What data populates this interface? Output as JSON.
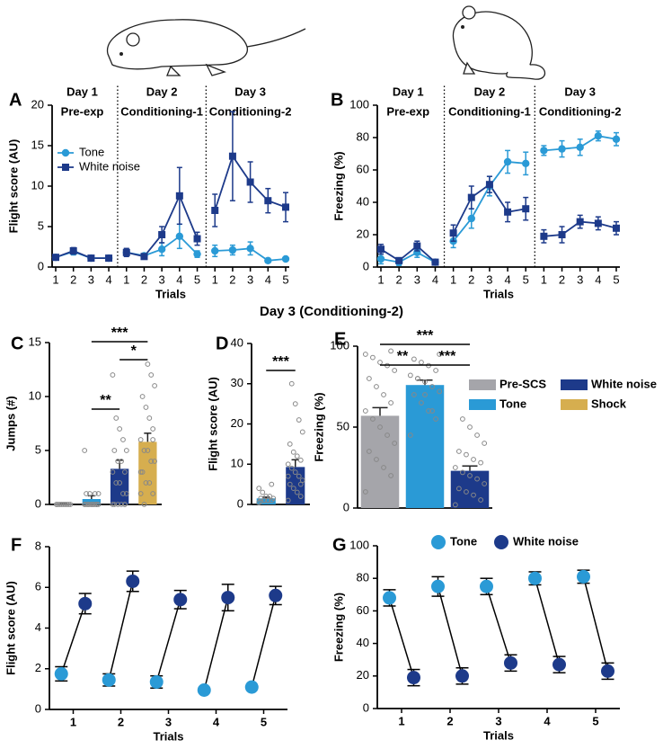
{
  "heading": "Day 3 (Conditioning-2)",
  "chart_data": [
    {
      "type": "line",
      "label": "A",
      "ylabel": "Flight score (AU)",
      "xlabel": "Trials",
      "sections": [
        {
          "title": "Day 1",
          "subtitle": "Pre-exp"
        },
        {
          "title": "Day 2",
          "subtitle": "Conditioning-1"
        },
        {
          "title": "Day 3",
          "subtitle": "Conditioning-2"
        }
      ],
      "categories": [
        "1",
        "2",
        "3",
        "4",
        "1",
        "2",
        "3",
        "4",
        "5",
        "1",
        "2",
        "3",
        "4",
        "5"
      ],
      "ylim": [
        0,
        20
      ],
      "yticks": [
        0,
        5,
        10,
        15,
        20
      ],
      "legend": "upper left",
      "series": [
        {
          "name": "Tone",
          "color": "#2a9ad6",
          "marker": "circle",
          "values": [
            1.2,
            1.9,
            1.1,
            1.1,
            1.8,
            1.4,
            2.2,
            3.8,
            1.6,
            2.0,
            2.1,
            2.3,
            0.8,
            1.0
          ],
          "errors": [
            0.3,
            0.4,
            0.2,
            0.2,
            0.4,
            0.3,
            0.8,
            1.5,
            0.4,
            0.7,
            0.6,
            0.8,
            0.2,
            0.2
          ]
        },
        {
          "name": "White noise",
          "color": "#1d3a8a",
          "marker": "square",
          "values": [
            1.2,
            2.0,
            1.1,
            1.1,
            1.8,
            1.3,
            4.0,
            8.8,
            3.5,
            7.0,
            13.7,
            10.5,
            8.2,
            7.4
          ],
          "errors": [
            0.3,
            0.4,
            0.2,
            0.2,
            0.5,
            0.3,
            1.0,
            3.5,
            0.8,
            2.0,
            5.5,
            2.5,
            1.5,
            1.8
          ]
        }
      ]
    },
    {
      "type": "line",
      "label": "B",
      "ylabel": "Freezing (%)",
      "xlabel": "Trials",
      "sections": [
        {
          "title": "Day 1",
          "subtitle": "Pre-exp"
        },
        {
          "title": "Day 2",
          "subtitle": "Conditioning-1"
        },
        {
          "title": "Day 3",
          "subtitle": "Conditioning-2"
        }
      ],
      "categories": [
        "1",
        "2",
        "3",
        "4",
        "1",
        "2",
        "3",
        "4",
        "5",
        "1",
        "2",
        "3",
        "4",
        "5"
      ],
      "ylim": [
        0,
        100
      ],
      "yticks": [
        0,
        20,
        40,
        60,
        80,
        100
      ],
      "series": [
        {
          "name": "Tone",
          "color": "#2a9ad6",
          "marker": "circle",
          "values": [
            5,
            3,
            9,
            3,
            16,
            30,
            50,
            65,
            64,
            72,
            73,
            74,
            81,
            79
          ],
          "errors": [
            3,
            2,
            3,
            1,
            4,
            6,
            6,
            7,
            7,
            3,
            5,
            5,
            3,
            4
          ]
        },
        {
          "name": "White noise",
          "color": "#1d3a8a",
          "marker": "square",
          "values": [
            11,
            4,
            13,
            3,
            21,
            43,
            51,
            34,
            36,
            19,
            20,
            28,
            27,
            24
          ],
          "errors": [
            3,
            1,
            3,
            1,
            5,
            7,
            5,
            6,
            7,
            4,
            5,
            4,
            4,
            4
          ]
        }
      ]
    },
    {
      "type": "bar",
      "label": "C",
      "ylabel": "Jumps (#)",
      "ylim": [
        0,
        15
      ],
      "yticks": [
        0,
        5,
        10,
        15
      ],
      "values": [
        0.05,
        0.5,
        3.3,
        5.8
      ],
      "errors": [
        0.02,
        0.3,
        0.8,
        0.8
      ],
      "colors": [
        "#a5a5aa",
        "#2a9ad6",
        "#1d3a8a",
        "#d6ae4f"
      ],
      "points": [
        [
          0,
          0,
          0,
          0,
          0,
          0,
          0,
          0,
          0,
          0
        ],
        [
          0,
          0,
          0,
          0,
          0,
          0,
          0,
          0,
          0,
          0,
          0,
          0,
          1,
          1,
          1,
          1,
          0,
          0,
          5,
          0
        ],
        [
          0,
          0,
          0,
          0,
          0,
          1,
          1,
          2,
          2,
          3,
          3,
          4,
          4,
          5,
          5,
          6,
          7,
          8,
          12,
          0
        ],
        [
          1,
          1,
          2,
          2,
          3,
          4,
          4,
          5,
          5,
          6,
          7,
          8,
          9,
          10,
          11,
          12,
          13,
          0,
          3,
          6
        ]
      ],
      "significance": [
        "***",
        "*",
        "**"
      ]
    },
    {
      "type": "bar",
      "label": "D",
      "ylabel": "Flight score (AU)",
      "ylim": [
        0,
        40
      ],
      "yticks": [
        0,
        10,
        20,
        30,
        40
      ],
      "values": [
        1.5,
        9.3
      ],
      "errors": [
        0.3,
        1.8
      ],
      "colors": [
        "#2a9ad6",
        "#1d3a8a"
      ],
      "points": [
        [
          0.5,
          1,
          1,
          1,
          1.5,
          1.5,
          2,
          2,
          3,
          4,
          5,
          1,
          1,
          0.8
        ],
        [
          1,
          2,
          3,
          4,
          5,
          6,
          7,
          8,
          9,
          10,
          11,
          12,
          13,
          15,
          18,
          21,
          25,
          30,
          7,
          5
        ]
      ],
      "significance": [
        "***"
      ]
    },
    {
      "type": "bar",
      "label": "E",
      "ylabel": "Freezing (%)",
      "ylim": [
        0,
        100
      ],
      "yticks": [
        0,
        50,
        100
      ],
      "values": [
        57,
        76,
        23
      ],
      "errors": [
        5,
        3,
        3
      ],
      "colors": [
        "#a5a5aa",
        "#2a9ad6",
        "#1d3a8a"
      ],
      "points": [
        [
          10,
          20,
          25,
          30,
          35,
          40,
          45,
          50,
          55,
          60,
          65,
          70,
          75,
          80,
          85,
          88,
          90,
          93,
          95,
          97
        ],
        [
          45,
          55,
          60,
          65,
          70,
          72,
          75,
          78,
          80,
          82,
          85,
          88,
          90,
          92,
          95,
          60,
          70,
          80
        ],
        [
          2,
          5,
          8,
          10,
          12,
          15,
          18,
          20,
          22,
          25,
          28,
          30,
          33,
          35,
          40,
          45,
          50,
          55
        ]
      ],
      "significance": [
        "***",
        "**",
        "***"
      ],
      "legend": [
        {
          "name": "Pre-SCS",
          "color": "#a5a5aa"
        },
        {
          "name": "White noise",
          "color": "#1d3a8a"
        },
        {
          "name": "Tone",
          "color": "#2a9ad6"
        },
        {
          "name": "Shock",
          "color": "#d6ae4f"
        }
      ]
    },
    {
      "type": "dot",
      "label": "F",
      "ylabel": "Flight score (AU)",
      "xlabel": "Trials",
      "categories": [
        "1",
        "2",
        "3",
        "4",
        "5"
      ],
      "ylim": [
        0,
        8
      ],
      "yticks": [
        0,
        2,
        4,
        6,
        8
      ],
      "series": [
        {
          "name": "Tone",
          "color": "#2a9ad6",
          "values": [
            1.75,
            1.45,
            1.35,
            0.95,
            1.1
          ],
          "errors": [
            0.35,
            0.3,
            0.3,
            0.05,
            0.05
          ]
        },
        {
          "name": "White noise",
          "color": "#1d3a8a",
          "values": [
            5.2,
            6.3,
            5.4,
            5.5,
            5.6
          ],
          "errors": [
            0.5,
            0.5,
            0.45,
            0.65,
            0.45
          ]
        }
      ]
    },
    {
      "type": "dot",
      "label": "G",
      "ylabel": "Freezing (%)",
      "xlabel": "Trials",
      "legend": "top",
      "categories": [
        "1",
        "2",
        "3",
        "4",
        "5"
      ],
      "ylim": [
        0,
        100
      ],
      "yticks": [
        0,
        20,
        40,
        60,
        80,
        100
      ],
      "series": [
        {
          "name": "Tone",
          "color": "#2a9ad6",
          "values": [
            68,
            75,
            75,
            80,
            81
          ],
          "errors": [
            5,
            6,
            5,
            4,
            4
          ]
        },
        {
          "name": "White noise",
          "color": "#1d3a8a",
          "values": [
            19,
            20,
            28,
            27,
            23
          ],
          "errors": [
            5,
            5,
            5,
            5,
            5
          ]
        }
      ]
    }
  ]
}
